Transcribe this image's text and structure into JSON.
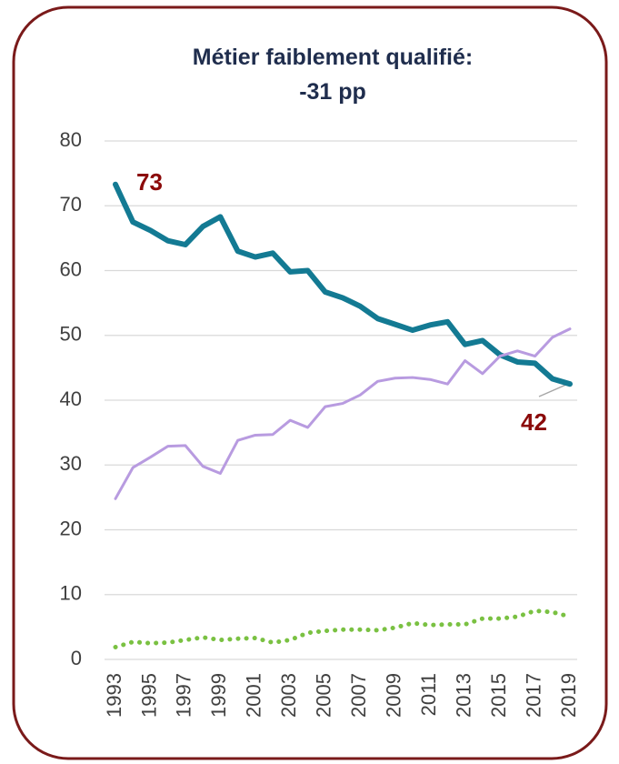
{
  "chart_data": {
    "type": "line",
    "title": "Métier faiblement qualifié: -31 pp",
    "x": [
      1993,
      1994,
      1995,
      1996,
      1997,
      1998,
      1999,
      2000,
      2001,
      2002,
      2003,
      2004,
      2005,
      2006,
      2007,
      2008,
      2009,
      2010,
      2011,
      2012,
      2013,
      2014,
      2015,
      2016,
      2017,
      2018,
      2019
    ],
    "xlim": [
      1993,
      2019
    ],
    "xticks": [
      1993,
      1995,
      1997,
      1999,
      2001,
      2003,
      2005,
      2007,
      2009,
      2011,
      2013,
      2015,
      2017,
      2019
    ],
    "ylim": [
      0,
      80
    ],
    "yticks": [
      0,
      10,
      20,
      30,
      40,
      50,
      60,
      70,
      80
    ],
    "grid": true,
    "series": [
      {
        "color": "#137a93",
        "style": "solid",
        "width": 6,
        "values": [
          73.3,
          67.5,
          66.2,
          64.6,
          64.0,
          66.8,
          68.3,
          63.0,
          62.1,
          62.7,
          59.8,
          60.0,
          56.7,
          55.8,
          54.5,
          52.6,
          51.7,
          50.8,
          51.6,
          52.1,
          48.6,
          49.2,
          47.0,
          45.9,
          45.7,
          43.3,
          42.5
        ]
      },
      {
        "color": "#b89be0",
        "style": "solid",
        "width": 3,
        "values": [
          24.8,
          29.6,
          31.2,
          32.9,
          33.0,
          29.8,
          28.7,
          33.8,
          34.6,
          34.7,
          36.9,
          35.8,
          39.0,
          39.5,
          40.8,
          42.9,
          43.4,
          43.5,
          43.2,
          42.5,
          46.1,
          44.1,
          46.8,
          47.6,
          46.8,
          49.7,
          51.0
        ]
      },
      {
        "color": "#7ac142",
        "style": "dotted",
        "width": 5,
        "values": [
          1.9,
          2.7,
          2.5,
          2.6,
          3.0,
          3.4,
          3.0,
          3.2,
          3.3,
          2.6,
          3.0,
          4.1,
          4.4,
          4.6,
          4.6,
          4.5,
          4.9,
          5.6,
          5.3,
          5.4,
          5.4,
          6.3,
          6.3,
          6.6,
          7.5,
          7.3,
          6.6
        ]
      }
    ],
    "annotations": [
      "73",
      "42"
    ]
  }
}
